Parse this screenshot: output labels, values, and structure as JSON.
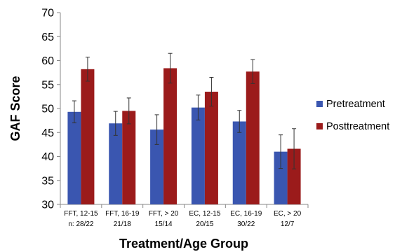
{
  "chart_data": {
    "type": "bar",
    "title": "",
    "xlabel": "Treatment/Age Group",
    "ylabel": "GAF Score",
    "ylim": [
      30,
      70
    ],
    "yticks": [
      30,
      35,
      40,
      45,
      50,
      55,
      60,
      65,
      70
    ],
    "grid": false,
    "legend_position": "right",
    "categories": [
      {
        "line1": "FFT, 12-15",
        "line2": "n: 28/22"
      },
      {
        "line1": "FFT, 16-19",
        "line2": "21/18"
      },
      {
        "line1": "FFT, > 20",
        "line2": "15/14"
      },
      {
        "line1": "EC, 12-15",
        "line2": "20/15"
      },
      {
        "line1": "EC, 16-19",
        "line2": "30/22"
      },
      {
        "line1": "EC, > 20",
        "line2": "12/7"
      }
    ],
    "series": [
      {
        "name": "Pretreatment",
        "color": "#3a56b0",
        "values": [
          49.3,
          46.9,
          45.6,
          50.2,
          47.3,
          41.0
        ],
        "errors": [
          2.3,
          2.5,
          3.1,
          2.6,
          2.3,
          3.5
        ]
      },
      {
        "name": "Posttreatment",
        "color": "#9b1b1b",
        "values": [
          58.2,
          49.5,
          58.4,
          53.5,
          57.7,
          41.6
        ],
        "errors": [
          2.5,
          2.7,
          3.1,
          3.0,
          2.5,
          4.2
        ]
      }
    ]
  }
}
